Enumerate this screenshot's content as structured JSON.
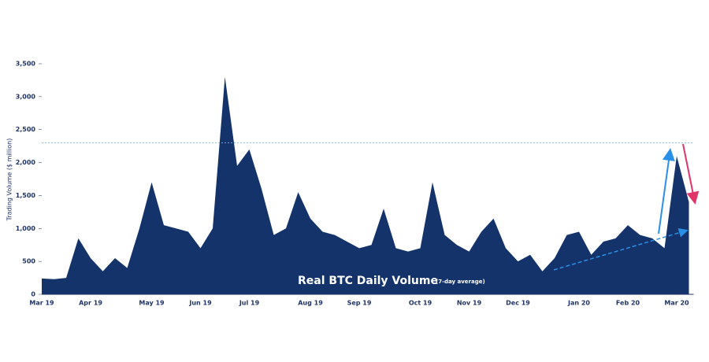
{
  "chart_data": {
    "type": "area",
    "title": "Real BTC Daily Volume",
    "subtitle": "(7-day average)",
    "y_label": "Trading Volume ($ million)",
    "categories": [
      "Mar 19",
      null,
      null,
      null,
      "Apr 19",
      null,
      null,
      null,
      null,
      "May 19",
      null,
      null,
      null,
      "Jun 19",
      null,
      null,
      null,
      "Jul 19",
      null,
      null,
      null,
      null,
      "Aug 19",
      null,
      null,
      null,
      "Sep 19",
      null,
      null,
      null,
      null,
      "Oct 19",
      null,
      null,
      null,
      "Nov 19",
      null,
      null,
      null,
      "Dec 19",
      null,
      null,
      null,
      null,
      "Jan 20",
      null,
      null,
      null,
      "Feb 20",
      null,
      null,
      null,
      "Mar 20",
      null
    ],
    "values": [
      240,
      230,
      250,
      850,
      550,
      350,
      550,
      400,
      1000,
      1700,
      1050,
      1000,
      950,
      700,
      1000,
      3300,
      1950,
      2200,
      1600,
      900,
      1000,
      1550,
      1150,
      950,
      900,
      800,
      700,
      750,
      1300,
      700,
      650,
      700,
      1700,
      900,
      750,
      650,
      950,
      1150,
      700,
      500,
      600,
      350,
      550,
      900,
      950,
      600,
      800,
      850,
      1050,
      900,
      850,
      700,
      2100,
      1400
    ],
    "color": "#14336b",
    "reference_line": 2300,
    "ylim": [
      0,
      3500
    ],
    "yticks": [
      0,
      500,
      {
        "value": 1000,
        "label": "1,000"
      },
      {
        "value": 1500,
        "label": "1,500"
      },
      {
        "value": 2000,
        "label": "2,000"
      },
      {
        "value": 2500,
        "label": "2,500"
      },
      {
        "value": 3000,
        "label": "3,000"
      },
      {
        "value": 3500,
        "label": "3,500"
      }
    ],
    "grid": false
  }
}
